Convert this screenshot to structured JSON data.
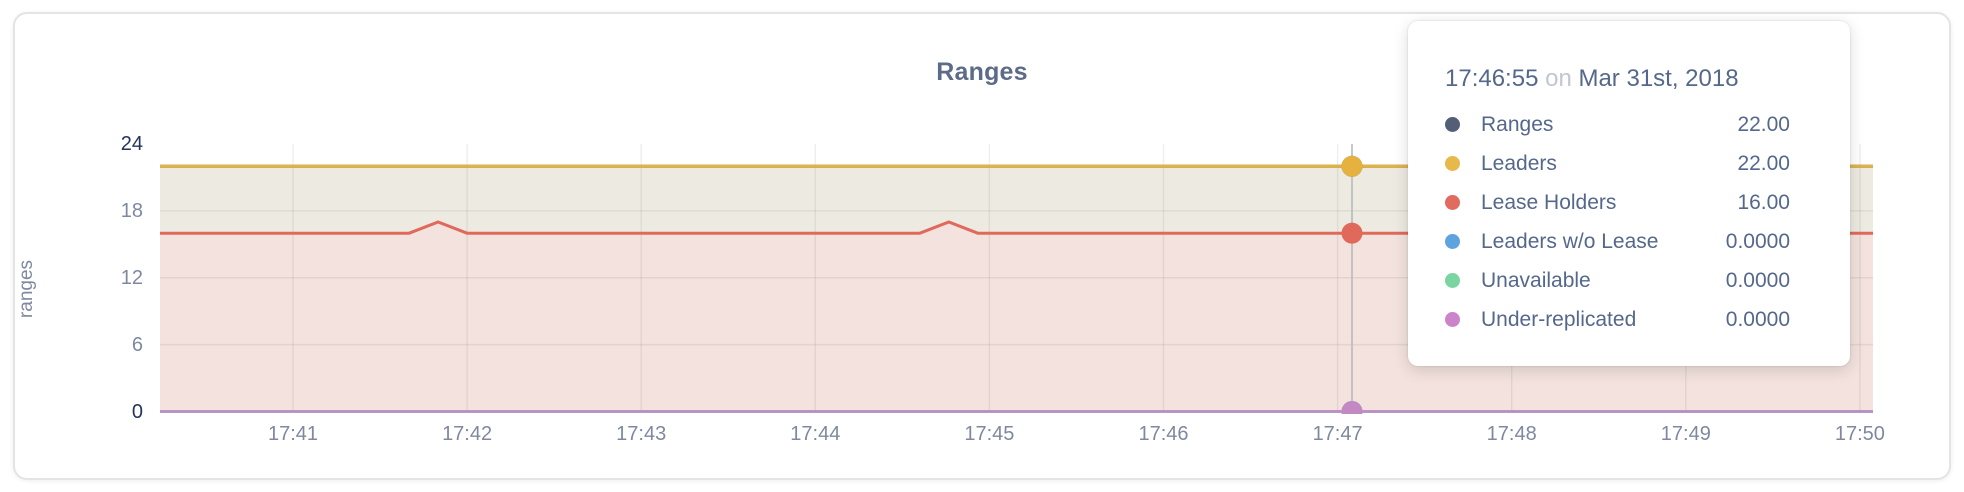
{
  "panel": {
    "title": "Ranges"
  },
  "y_axis": {
    "label": "ranges",
    "ticks": [
      {
        "text": "24",
        "value": 24,
        "dark": true
      },
      {
        "text": "18",
        "value": 18,
        "dark": false
      },
      {
        "text": "12",
        "value": 12,
        "dark": false
      },
      {
        "text": "6",
        "value": 6,
        "dark": false
      },
      {
        "text": "0",
        "value": 0,
        "dark": true
      }
    ]
  },
  "x_axis": {
    "ticks": [
      "17:41",
      "17:42",
      "17:43",
      "17:44",
      "17:45",
      "17:46",
      "17:47",
      "17:48",
      "17:49",
      "17:50"
    ]
  },
  "tooltip": {
    "time": "17:46:55",
    "connector": "on",
    "date": "Mar 31st, 2018",
    "rows": [
      {
        "label": "Ranges",
        "value": "22.00",
        "color": "#545f77"
      },
      {
        "label": "Leaders",
        "value": "22.00",
        "color": "#e7b84a"
      },
      {
        "label": "Lease Holders",
        "value": "16.00",
        "color": "#e26b60"
      },
      {
        "label": "Leaders w/o Lease",
        "value": "0.0000",
        "color": "#5ea3de"
      },
      {
        "label": "Unavailable",
        "value": "0.0000",
        "color": "#7bd5a1"
      },
      {
        "label": "Under-replicated",
        "value": "0.0000",
        "color": "#cb83c9"
      }
    ]
  },
  "chart_data": {
    "type": "line",
    "title": "Ranges",
    "ylabel": "ranges",
    "ylim": [
      0,
      24
    ],
    "yticks": [
      0,
      6,
      12,
      18,
      24
    ],
    "grid_yticks": [
      6,
      12,
      18
    ],
    "x_range": [
      "17:40:14",
      "17:50:05"
    ],
    "xticks": [
      "17:41",
      "17:42",
      "17:43",
      "17:44",
      "17:45",
      "17:46",
      "17:47",
      "17:48",
      "17:49",
      "17:50"
    ],
    "grid": true,
    "legend_position": "tooltip",
    "hover": {
      "time": "17:46:55",
      "date": "Mar 31st, 2018"
    },
    "series": [
      {
        "name": "Ranges",
        "color": "#5a6477",
        "line_width": 3,
        "value_at_hover": 22,
        "points": [
          [
            "17:40:14",
            22
          ],
          [
            "17:50:05",
            22
          ]
        ]
      },
      {
        "name": "Leaders",
        "color": "#e5b240",
        "fill": "#edebe1",
        "line_width": 3,
        "value_at_hover": 22,
        "points": [
          [
            "17:40:14",
            22
          ],
          [
            "17:50:05",
            22
          ]
        ]
      },
      {
        "name": "Lease Holders",
        "color": "#e0695c",
        "fill": "#f3e2dd",
        "line_width": 3,
        "value_at_hover": 16,
        "points": [
          [
            "17:40:14",
            16
          ],
          [
            "17:41:40",
            16
          ],
          [
            "17:41:50",
            17
          ],
          [
            "17:42:00",
            16
          ],
          [
            "17:44:36",
            16
          ],
          [
            "17:44:46",
            17
          ],
          [
            "17:44:56",
            16
          ],
          [
            "17:50:05",
            16
          ]
        ]
      },
      {
        "name": "Leaders w/o Lease",
        "color": "#5da3df",
        "line_width": 2.5,
        "value_at_hover": 0,
        "points": [
          [
            "17:40:14",
            0
          ],
          [
            "17:50:05",
            0
          ]
        ]
      },
      {
        "name": "Unavailable",
        "color": "#79d3a2",
        "line_width": 2.5,
        "value_at_hover": 0,
        "points": [
          [
            "17:40:14",
            0
          ],
          [
            "17:50:05",
            0
          ]
        ]
      },
      {
        "name": "Under-replicated",
        "color": "#c289c3",
        "line_width": 2.5,
        "value_at_hover": 0,
        "points": [
          [
            "17:40:14",
            0
          ],
          [
            "17:50:05",
            0
          ]
        ]
      }
    ]
  }
}
